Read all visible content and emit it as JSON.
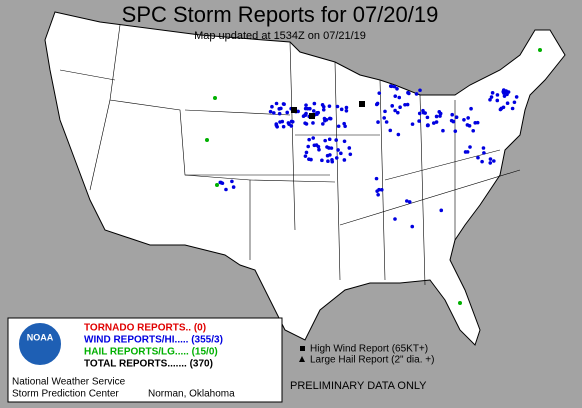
{
  "header": {
    "title": "SPC Storm Reports for 07/20/19",
    "subtitle": "Map updated at 1534Z on 07/21/19"
  },
  "legend": {
    "logo": "NOAA",
    "items": [
      {
        "label": "TORNADO REPORTS.. (0)",
        "color": "#e00000"
      },
      {
        "label": "WIND REPORTS/HI..... (355/3)",
        "color": "#0000e0"
      },
      {
        "label": "HAIL REPORTS/LG..... (15/0)",
        "color": "#00b000"
      },
      {
        "label": "TOTAL REPORTS....... (370)",
        "color": "#000000"
      }
    ],
    "agency": "National Weather Service",
    "center": "Storm Prediction Center",
    "location": "Norman, Oklahoma"
  },
  "key": {
    "items": [
      "High Wind Report (65KT+)",
      "Large Hail Report (2\" dia. +)"
    ]
  },
  "footer": {
    "note": "PRELIMINARY DATA ONLY"
  }
}
